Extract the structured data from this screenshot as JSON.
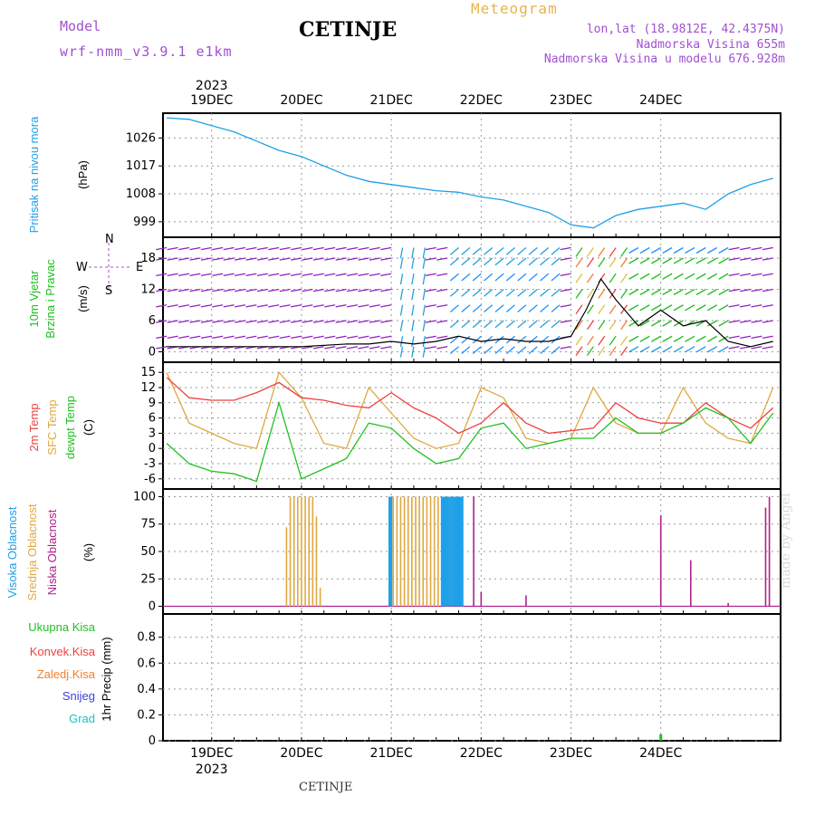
{
  "header": {
    "title": "CETINJE",
    "model_label": "Model",
    "model_name": "wrf-nmm_v3.9.1 e1km",
    "product": "Meteogram",
    "lonlat": "lon,lat (18.9812E, 42.4375N)",
    "elevation": "Nadmorska Visina 655m",
    "model_elevation": "Nadmorska Visina u modelu 676.928m"
  },
  "footer": "CETINJE",
  "credit": "made by Angel",
  "colors": {
    "pressure": "#1ea0e8",
    "temp2m": "#ee4040",
    "sfc_temp": "#e0a840",
    "dewpt": "#20c020",
    "high_cloud": "#1ea0e8",
    "mid_cloud": "#e0a840",
    "low_cloud": "#b0208c",
    "total_precip": "#20c020",
    "conv_precip": "#ee4040",
    "frz_precip": "#f08030",
    "snow": "#4040e0",
    "hail": "#20c0c0",
    "wind_label": "#20c020",
    "wind_dirs": "#a050d0"
  },
  "axes": {
    "year": "2023",
    "dates": [
      "19DEC",
      "20DEC",
      "21DEC",
      "22DEC",
      "23DEC",
      "24DEC"
    ]
  },
  "chart_data": [
    {
      "type": "line",
      "panel": "pressure",
      "ylabel": [
        "Pritisak na nivou mora",
        "(hPa)"
      ],
      "yticks": [
        999,
        1008,
        1017,
        1026
      ],
      "ylim": [
        994,
        1034
      ],
      "x_unit": "hours since 19DEC 00UTC",
      "series": [
        {
          "x": [
            -12,
            -6,
            0,
            6,
            12,
            18,
            24,
            30,
            36,
            42,
            48,
            54,
            60,
            66,
            72,
            78,
            84,
            90,
            96,
            102,
            108,
            114,
            120,
            126,
            132,
            138,
            144,
            150
          ],
          "y": [
            1032.5,
            1032,
            1030,
            1028,
            1025,
            1022,
            1020,
            1017,
            1014,
            1012,
            1011,
            1010,
            1009,
            1008.5,
            1007,
            1006,
            1004,
            1002,
            998,
            997,
            1001,
            1003,
            1004,
            1005,
            1003,
            1008,
            1011,
            1013
          ]
        }
      ]
    },
    {
      "type": "line",
      "panel": "wind",
      "ylabel": [
        "10m Vjetar",
        "Brzina i Pravac",
        "(m/s)"
      ],
      "direction_labels": [
        "N",
        "E",
        "S",
        "W"
      ],
      "yticks": [
        0,
        6,
        12,
        18
      ],
      "ylim": [
        -2,
        22
      ],
      "series": [
        {
          "x": [
            -12,
            0,
            12,
            24,
            36,
            42,
            48,
            54,
            60,
            66,
            72,
            78,
            84,
            90,
            96,
            100,
            104,
            108,
            114,
            120,
            126,
            132,
            138,
            144,
            150
          ],
          "y": [
            1,
            1,
            1,
            1,
            1.5,
            1.5,
            2,
            1.5,
            2,
            3,
            2,
            2.5,
            2,
            2,
            3,
            8,
            14,
            10,
            5,
            8,
            5,
            6,
            2,
            1,
            2
          ]
        }
      ]
    },
    {
      "type": "line",
      "panel": "temperature",
      "ylabel": [
        "2m Temp",
        "SFC Temp",
        "dewpt Temp",
        "(C)"
      ],
      "yticks": [
        -6,
        -3,
        0,
        3,
        6,
        9,
        12,
        15
      ],
      "ylim": [
        -8,
        17
      ],
      "series": [
        {
          "name": "2m Temp",
          "x": [
            -12,
            -6,
            0,
            6,
            12,
            18,
            24,
            30,
            36,
            42,
            48,
            54,
            60,
            66,
            72,
            78,
            84,
            90,
            96,
            102,
            108,
            114,
            120,
            126,
            132,
            138,
            144,
            150
          ],
          "y": [
            14,
            10,
            9.5,
            9.5,
            11,
            13,
            10,
            9.5,
            8.5,
            8,
            11,
            8,
            6,
            3,
            5,
            9,
            5,
            3,
            3.5,
            4,
            9,
            6,
            5,
            5,
            9,
            6,
            4,
            8
          ]
        },
        {
          "name": "SFC Temp",
          "x": [
            -12,
            -6,
            0,
            6,
            12,
            18,
            24,
            30,
            36,
            42,
            48,
            54,
            60,
            66,
            72,
            78,
            84,
            90,
            96,
            102,
            108,
            114,
            120,
            126,
            132,
            138,
            144,
            150
          ],
          "y": [
            15,
            5,
            3,
            1,
            0,
            15,
            10,
            1,
            0,
            12,
            7,
            2,
            0,
            1,
            12,
            10,
            2,
            1,
            2,
            12,
            5,
            3,
            3,
            12,
            5,
            2,
            1,
            12
          ]
        },
        {
          "name": "dewpt Temp",
          "x": [
            -12,
            -6,
            0,
            6,
            12,
            18,
            24,
            30,
            36,
            42,
            48,
            54,
            60,
            66,
            72,
            78,
            84,
            90,
            96,
            102,
            108,
            114,
            120,
            126,
            132,
            138,
            144,
            150
          ],
          "y": [
            1,
            -3,
            -4.5,
            -5,
            -6.5,
            9,
            -6,
            -4,
            -2,
            5,
            4,
            0,
            -3,
            -2,
            4,
            5,
            0,
            1,
            2,
            2,
            6,
            3,
            3,
            5,
            8,
            6,
            1,
            7
          ]
        }
      ]
    },
    {
      "type": "bar",
      "panel": "cloud",
      "ylabel": [
        "Visoka Oblacnost",
        "Srednja Oblacnost",
        "Niska Oblacnost",
        "(%)"
      ],
      "yticks": [
        0,
        25,
        50,
        75,
        100
      ],
      "ylim": [
        -7,
        107
      ],
      "series": [
        {
          "name": "Visoka Oblacnost",
          "x": [
            47.5,
            48,
            61.5,
            62,
            62.5,
            63,
            63.5,
            64,
            64.5,
            65,
            65.5,
            66,
            66.5,
            67
          ],
          "y": [
            100,
            100,
            100,
            100,
            100,
            100,
            100,
            100,
            100,
            100,
            100,
            100,
            100,
            100
          ]
        },
        {
          "name": "Srednja Oblacnost",
          "x": [
            20,
            21,
            22,
            23,
            24,
            25,
            26,
            27,
            28,
            29,
            48.5,
            49.5,
            50.5,
            51.5,
            52.5,
            53.5,
            54.5,
            55.5,
            56.5,
            57.5,
            58.5,
            59.5,
            60.5
          ],
          "y": [
            72,
            100,
            100,
            100,
            100,
            100,
            100,
            100,
            82,
            17,
            100,
            100,
            100,
            100,
            100,
            100,
            100,
            100,
            100,
            100,
            100,
            100,
            100
          ]
        },
        {
          "name": "Niska Oblacnost",
          "x": [
            70,
            72,
            84,
            120,
            128,
            138,
            148,
            149
          ],
          "y": [
            100,
            13,
            10,
            83,
            42,
            3,
            90,
            100
          ]
        }
      ]
    },
    {
      "type": "bar",
      "panel": "precip",
      "ylabel": [
        "1hr Precip (mm)"
      ],
      "legend": [
        "Ukupna Kisa",
        "Konvek.Kisa",
        "Zaledj.Kisa",
        "Snijeg",
        "Grad"
      ],
      "yticks": [
        0,
        0.2,
        0.4,
        0.6,
        0.8
      ],
      "ylim": [
        0,
        0.98
      ],
      "series": [
        {
          "name": "Ukupna Kisa",
          "x": [
            120
          ],
          "y": [
            0.05
          ]
        }
      ]
    }
  ]
}
